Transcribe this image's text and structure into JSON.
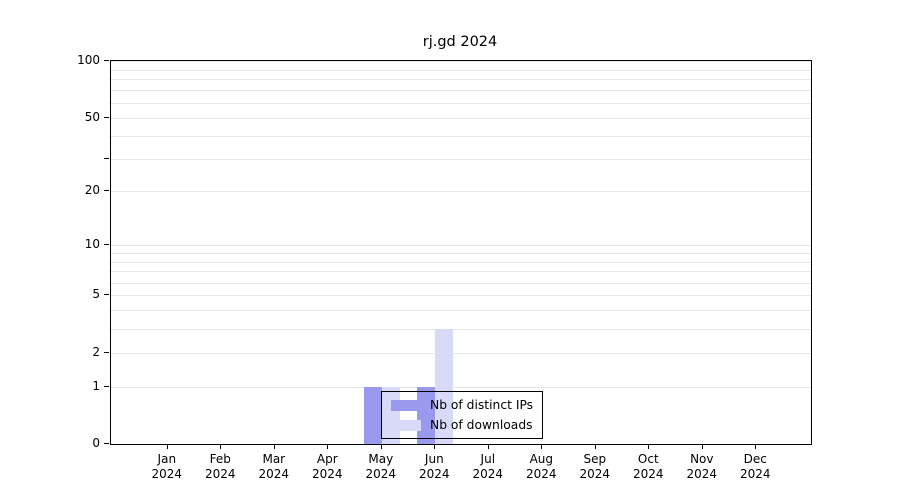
{
  "title": "rj.gd 2024",
  "chart_data": {
    "type": "bar",
    "categories": [
      "Jan",
      "Feb",
      "Mar",
      "Apr",
      "May",
      "Jun",
      "Jul",
      "Aug",
      "Sep",
      "Oct",
      "Nov",
      "Dec"
    ],
    "category_year": "2024",
    "series": [
      {
        "name": "Nb of distinct IPs",
        "color": "#9999ee",
        "values": [
          0,
          0,
          0,
          0,
          1,
          1,
          0,
          0,
          0,
          0,
          0,
          0
        ]
      },
      {
        "name": "Nb of downloads",
        "color": "#d9d9f8",
        "values": [
          0,
          0,
          0,
          0,
          1,
          3,
          0,
          0,
          0,
          0,
          0,
          0
        ]
      }
    ],
    "ylim": [
      0,
      100
    ],
    "yscale": "log1p",
    "yticks": [
      {
        "value": 0,
        "label": "0"
      },
      {
        "value": 1,
        "label": "1"
      },
      {
        "value": 2,
        "label": "2"
      },
      {
        "value": 5,
        "label": "5"
      },
      {
        "value": 10,
        "label": "10"
      },
      {
        "value": 20,
        "label": "20"
      },
      {
        "value": 30,
        "label": ""
      },
      {
        "value": 50,
        "label": "50"
      },
      {
        "value": 100,
        "label": "100"
      }
    ],
    "gridlines": [
      1,
      2,
      3,
      4,
      5,
      6,
      7,
      8,
      9,
      10,
      20,
      30,
      40,
      50,
      60,
      70,
      80,
      90,
      100
    ],
    "grid": "horizontal-only",
    "legend_position": "inside-bottom-center"
  }
}
